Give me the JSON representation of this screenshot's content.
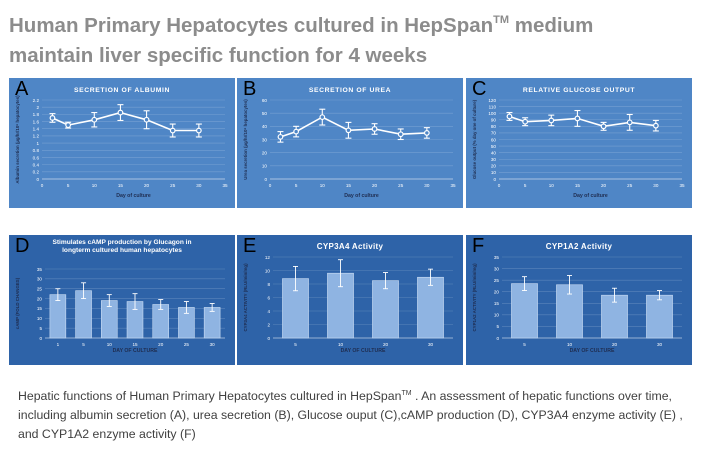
{
  "heading": {
    "line1": "Human Primary Hepatocytes cultured in HepSpan",
    "tm": "TM",
    "line1_end": " medium",
    "line2": "maintain liver specific function for 4 weeks"
  },
  "caption": {
    "part1": "Hepatic functions of Human Primary Hepatocytes cultured in HepSpan",
    "tm": "TM",
    "part2": " . An assessment of hepatic functions over time, including albumin secretion (A), urea secretion (B), Glucose ouput (C),cAMP production (D), CYP3A4 enzyme activity (E) , and CYP1A2 enzyme activity (F)"
  },
  "colors": {
    "panel_bg": "#4f86c6",
    "panel_bg_dark": "#2e63a8",
    "series": "#ffffff",
    "text": "#ffffff",
    "axis_title": "#1f2d50"
  },
  "chart_data": [
    {
      "id": "A",
      "letter": "A",
      "type": "line",
      "title": "SECRETION OF ALBUMIN",
      "xlabel": "Day of culture",
      "ylabel": "Albumin secretion (µg/hr/10⁶ hepatocytes)",
      "x": [
        2,
        5,
        10,
        15,
        20,
        25,
        30
      ],
      "y": [
        1.7,
        1.5,
        1.65,
        1.85,
        1.65,
        1.35,
        1.35
      ],
      "err": [
        0.12,
        0.08,
        0.2,
        0.22,
        0.25,
        0.18,
        0.18
      ],
      "xlim": [
        0,
        35
      ],
      "xticks": [
        0,
        5,
        10,
        15,
        20,
        25,
        30,
        35
      ],
      "ylim": [
        0,
        2.2
      ],
      "yticks": [
        0,
        0.2,
        0.4,
        0.6,
        0.8,
        1,
        1.2,
        1.4,
        1.6,
        1.8,
        2,
        2.2
      ]
    },
    {
      "id": "B",
      "letter": "B",
      "type": "line",
      "title": "SECRETION OF UREA",
      "xlabel": "Day of culture",
      "ylabel": "Urea secretion (µg/hr/10⁶ hepatocytes)",
      "x": [
        2,
        5,
        10,
        15,
        20,
        25,
        30
      ],
      "y": [
        32,
        36,
        47,
        37,
        38,
        34,
        35
      ],
      "err": [
        4,
        4,
        6,
        6,
        4,
        4,
        4
      ],
      "xlim": [
        0,
        35
      ],
      "xticks": [
        0,
        5,
        10,
        15,
        20,
        25,
        30,
        35
      ],
      "ylim": [
        0,
        60
      ],
      "yticks": [
        0,
        10,
        20,
        30,
        40,
        50,
        60
      ]
    },
    {
      "id": "C",
      "letter": "C",
      "type": "line",
      "title": "RELATIVE GLUCOSE OUTPUT",
      "xlabel": "Day of culture",
      "ylabel": "Glucose output (% day one of culture)",
      "x": [
        2,
        5,
        10,
        15,
        20,
        25,
        30
      ],
      "y": [
        95,
        87,
        89,
        92,
        80,
        86,
        81
      ],
      "err": [
        6,
        6,
        8,
        12,
        6,
        12,
        8
      ],
      "xlim": [
        0,
        35
      ],
      "xticks": [
        0,
        5,
        10,
        15,
        20,
        25,
        30,
        35
      ],
      "ylim": [
        0,
        120
      ],
      "yticks": [
        0,
        10,
        20,
        30,
        40,
        50,
        60,
        70,
        80,
        90,
        100,
        110,
        120
      ]
    },
    {
      "id": "D",
      "letter": "D",
      "type": "bar",
      "title": "Stimulates cAMP production by Glucagon in longterm cultured human hepatocytes",
      "xlabel": "DAY OF CULTURE",
      "ylabel": "cAMP (FOLD CHANGES)",
      "categories": [
        "1",
        "5",
        "10",
        "15",
        "20",
        "25",
        "30"
      ],
      "values": [
        22,
        24,
        19,
        18.5,
        17,
        15.5,
        15.5
      ],
      "err": [
        3,
        4,
        3,
        4,
        2.5,
        3,
        2
      ],
      "ylim": [
        0,
        35
      ],
      "yticks": [
        0,
        5,
        10,
        15,
        20,
        25,
        30,
        35
      ]
    },
    {
      "id": "E",
      "letter": "E",
      "type": "bar",
      "title": "CYP3A4 Activity",
      "xlabel": "DAY OF CULTURE",
      "ylabel": "CYP3A4 ACTIVITY (RLU/min/mg)",
      "categories": [
        "5",
        "10",
        "20",
        "30"
      ],
      "values": [
        8.8,
        9.6,
        8.5,
        9.0
      ],
      "err": [
        1.8,
        2.0,
        1.2,
        1.2
      ],
      "ylim": [
        0,
        12
      ],
      "yticks": [
        0,
        2,
        4,
        6,
        8,
        10,
        12
      ]
    },
    {
      "id": "F",
      "letter": "F",
      "type": "bar",
      "title": "CYP1A2 Activity",
      "xlabel": "DAY OF CULTURE",
      "ylabel": "CYP1A2 ACTIVITY (RLU/min/mg)",
      "categories": [
        "5",
        "10",
        "20",
        "30"
      ],
      "values": [
        23.5,
        23,
        18.5,
        18.5
      ],
      "err": [
        3,
        4,
        3,
        2
      ],
      "ylim": [
        0,
        35
      ],
      "yticks": [
        0,
        5,
        10,
        15,
        20,
        25,
        30,
        35
      ]
    }
  ]
}
